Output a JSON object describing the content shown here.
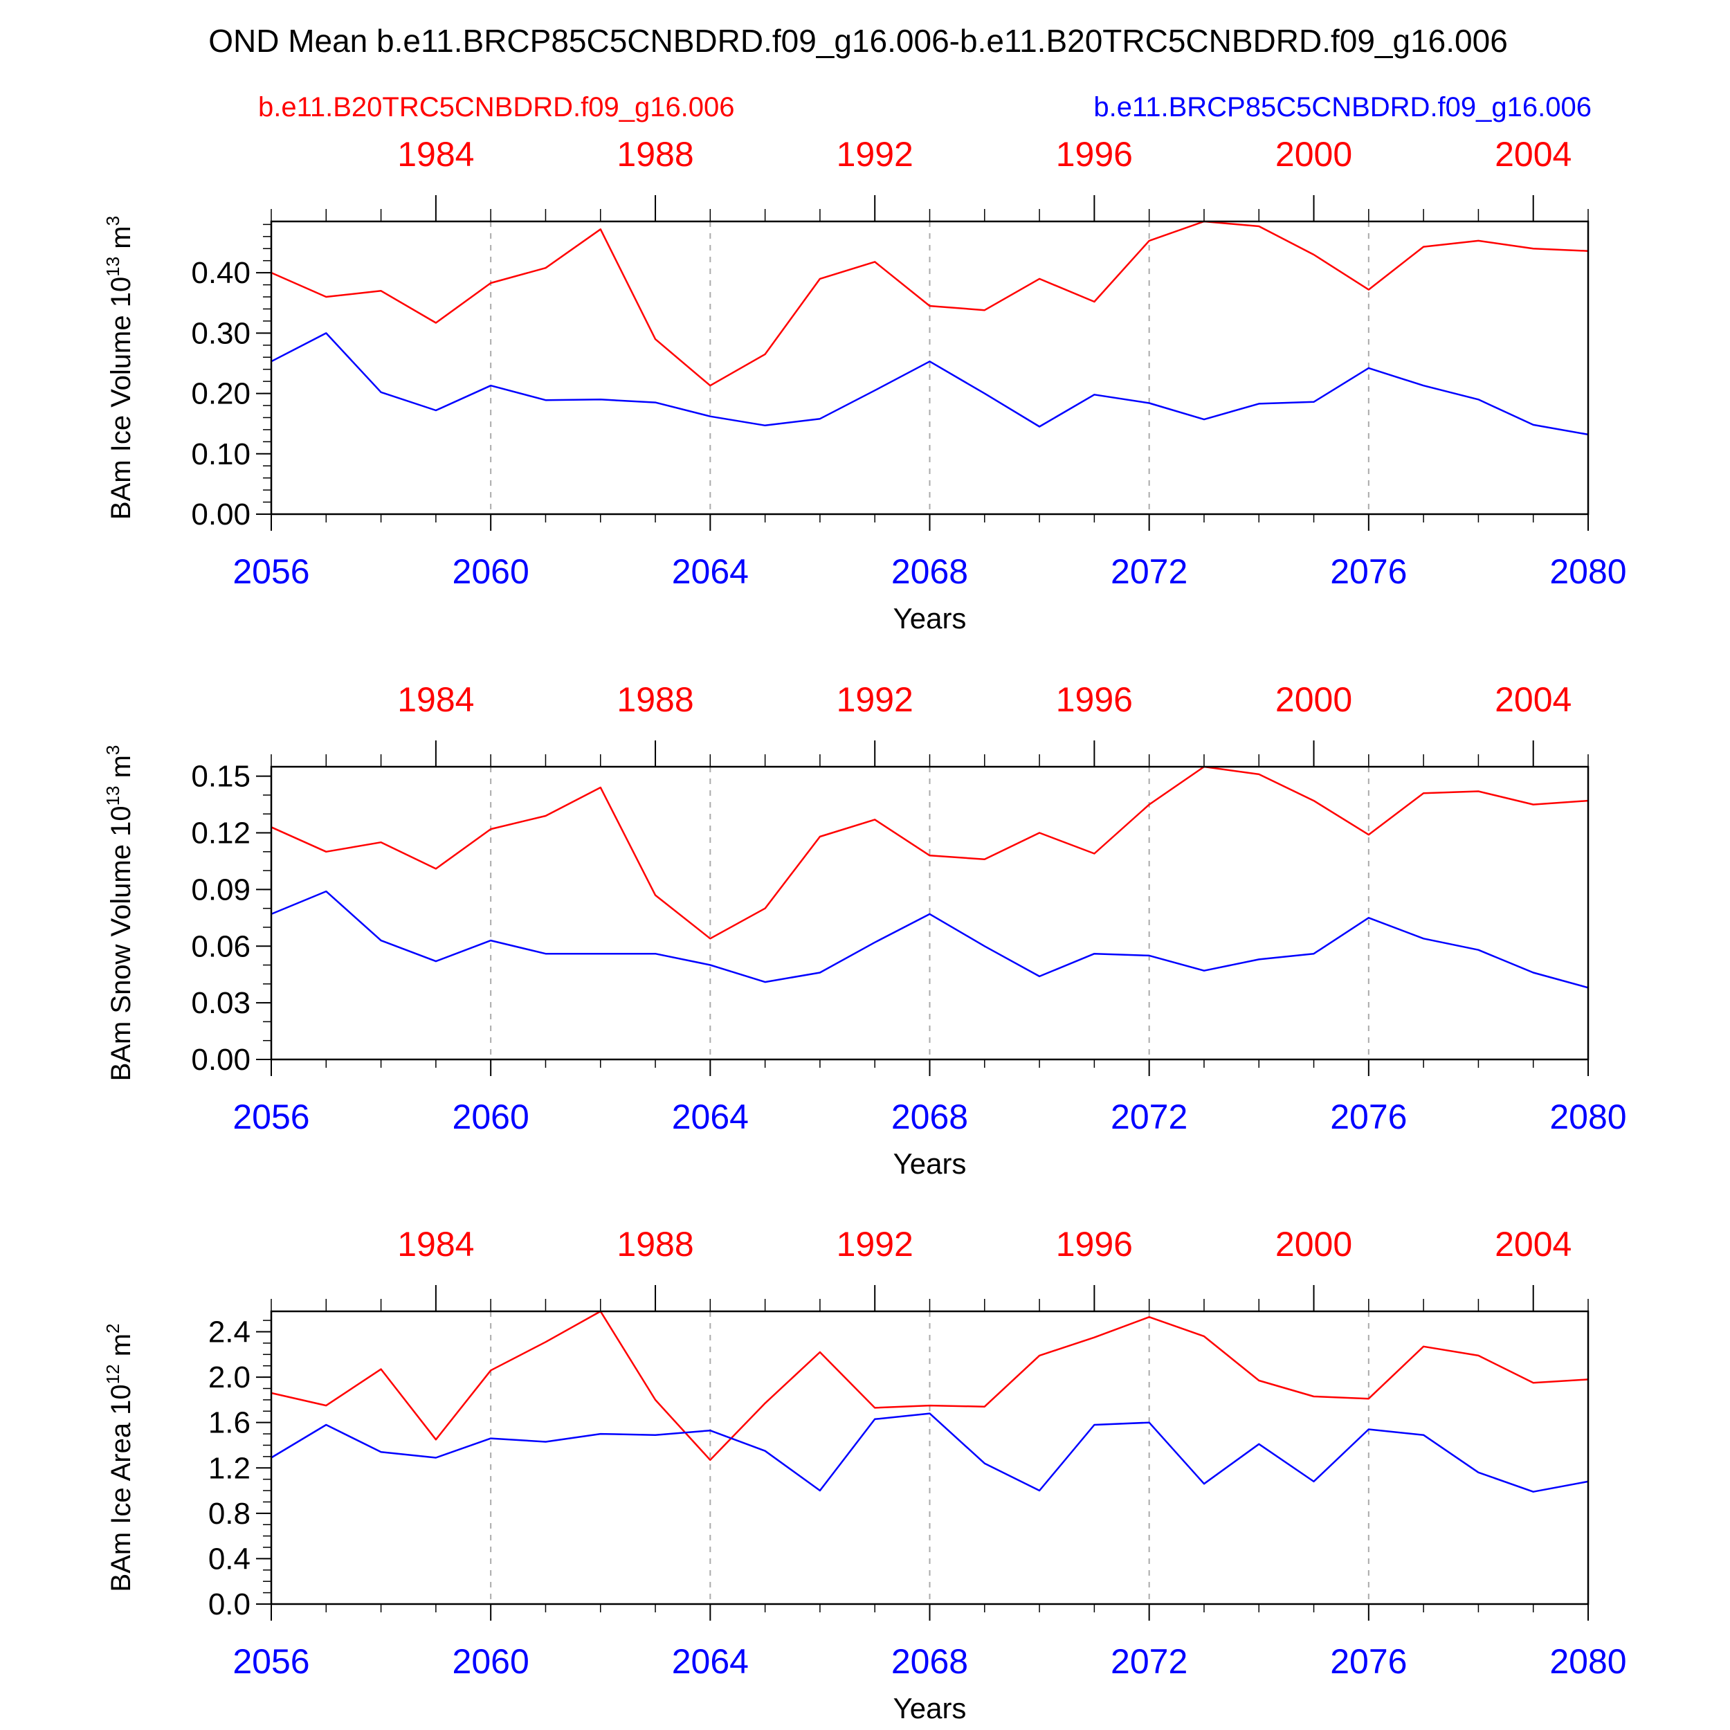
{
  "title": "OND Mean b.e11.BRCP85C5CNBDRD.f09_g16.006-b.e11.B20TRC5CNBDRD.f09_g16.006",
  "legend": {
    "left": "b.e11.B20TRC5CNBDRD.f09_g16.006",
    "right": "b.e11.BRCP85C5CNBDRD.f09_g16.006"
  },
  "colors": {
    "series1": "#ff0000",
    "series2": "#0000ff",
    "axis": "#000000",
    "grid": "#aaaaaa"
  },
  "chart_data": [
    {
      "type": "line",
      "xlabel": "Years",
      "ylabel": "BAm Ice Volume 10",
      "ylabel_exp": "13",
      "ylabel_unit": "m",
      "ylabel_unit_exp": "3",
      "ylim": [
        0,
        0.485
      ],
      "yticks": [
        0.0,
        0.1,
        0.2,
        0.3,
        0.4
      ],
      "ytick_labels": [
        "0.00",
        "0.10",
        "0.20",
        "0.30",
        "0.40"
      ],
      "yminor": 0.02,
      "xlim": [
        2056,
        2080
      ],
      "xticks": [
        2056,
        2060,
        2064,
        2068,
        2072,
        2076,
        2080
      ],
      "xtick_labels": [
        "2056",
        "2060",
        "2064",
        "2068",
        "2072",
        "2076",
        "2080"
      ],
      "top_xlim": [
        1981,
        2005
      ],
      "top_xticks": [
        1984,
        1988,
        1992,
        1996,
        2000,
        2004
      ],
      "top_xtick_labels": [
        "1984",
        "1988",
        "1992",
        "1996",
        "2000",
        "2004"
      ],
      "grid_x": [
        2060,
        2064,
        2068,
        2072,
        2076
      ],
      "series": [
        {
          "name": "b.e11.B20TRC5CNBDRD.f09_g16.006",
          "color": "#ff0000",
          "x": [
            2056,
            2057,
            2058,
            2059,
            2060,
            2061,
            2062,
            2063,
            2064,
            2065,
            2066,
            2067,
            2068,
            2069,
            2070,
            2071,
            2072,
            2073,
            2074,
            2075,
            2076,
            2077,
            2078,
            2079,
            2080
          ],
          "values": [
            0.4,
            0.36,
            0.37,
            0.317,
            0.383,
            0.408,
            0.472,
            0.29,
            0.213,
            0.265,
            0.39,
            0.418,
            0.345,
            0.338,
            0.39,
            0.352,
            0.453,
            0.485,
            0.477,
            0.43,
            0.372,
            0.443,
            0.453,
            0.44,
            0.436
          ]
        },
        {
          "name": "b.e11.BRCP85C5CNBDRD.f09_g16.006",
          "color": "#0000ff",
          "x": [
            2056,
            2057,
            2058,
            2059,
            2060,
            2061,
            2062,
            2063,
            2064,
            2065,
            2066,
            2067,
            2068,
            2069,
            2070,
            2071,
            2072,
            2073,
            2074,
            2075,
            2076,
            2077,
            2078,
            2079,
            2080
          ],
          "values": [
            0.253,
            0.3,
            0.202,
            0.172,
            0.213,
            0.189,
            0.19,
            0.185,
            0.162,
            0.147,
            0.158,
            0.205,
            0.253,
            0.2,
            0.145,
            0.198,
            0.184,
            0.157,
            0.183,
            0.186,
            0.242,
            0.213,
            0.19,
            0.148,
            0.132
          ]
        }
      ]
    },
    {
      "type": "line",
      "xlabel": "Years",
      "ylabel": "BAm Snow Volume 10",
      "ylabel_exp": "13",
      "ylabel_unit": "m",
      "ylabel_unit_exp": "3",
      "ylim": [
        0,
        0.155
      ],
      "yticks": [
        0.0,
        0.03,
        0.06,
        0.09,
        0.12,
        0.15
      ],
      "ytick_labels": [
        "0.00",
        "0.03",
        "0.06",
        "0.09",
        "0.12",
        "0.15"
      ],
      "yminor": 0.01,
      "xlim": [
        2056,
        2080
      ],
      "xticks": [
        2056,
        2060,
        2064,
        2068,
        2072,
        2076,
        2080
      ],
      "xtick_labels": [
        "2056",
        "2060",
        "2064",
        "2068",
        "2072",
        "2076",
        "2080"
      ],
      "top_xlim": [
        1981,
        2005
      ],
      "top_xticks": [
        1984,
        1988,
        1992,
        1996,
        2000,
        2004
      ],
      "top_xtick_labels": [
        "1984",
        "1988",
        "1992",
        "1996",
        "2000",
        "2004"
      ],
      "grid_x": [
        2060,
        2064,
        2068,
        2072,
        2076
      ],
      "series": [
        {
          "name": "b.e11.B20TRC5CNBDRD.f09_g16.006",
          "color": "#ff0000",
          "x": [
            2056,
            2057,
            2058,
            2059,
            2060,
            2061,
            2062,
            2063,
            2064,
            2065,
            2066,
            2067,
            2068,
            2069,
            2070,
            2071,
            2072,
            2073,
            2074,
            2075,
            2076,
            2077,
            2078,
            2079,
            2080
          ],
          "values": [
            0.123,
            0.11,
            0.115,
            0.101,
            0.122,
            0.129,
            0.144,
            0.087,
            0.064,
            0.08,
            0.118,
            0.127,
            0.108,
            0.106,
            0.12,
            0.109,
            0.135,
            0.155,
            0.151,
            0.137,
            0.119,
            0.141,
            0.142,
            0.135,
            0.137
          ]
        },
        {
          "name": "b.e11.BRCP85C5CNBDRD.f09_g16.006",
          "color": "#0000ff",
          "x": [
            2056,
            2057,
            2058,
            2059,
            2060,
            2061,
            2062,
            2063,
            2064,
            2065,
            2066,
            2067,
            2068,
            2069,
            2070,
            2071,
            2072,
            2073,
            2074,
            2075,
            2076,
            2077,
            2078,
            2079,
            2080
          ],
          "values": [
            0.077,
            0.089,
            0.063,
            0.052,
            0.063,
            0.056,
            0.056,
            0.056,
            0.05,
            0.041,
            0.046,
            0.062,
            0.077,
            0.06,
            0.044,
            0.056,
            0.055,
            0.047,
            0.053,
            0.056,
            0.075,
            0.064,
            0.058,
            0.046,
            0.038
          ]
        }
      ]
    },
    {
      "type": "line",
      "xlabel": "Years",
      "ylabel": "BAm Ice Area 10",
      "ylabel_exp": "12",
      "ylabel_unit": "m",
      "ylabel_unit_exp": "2",
      "ylim": [
        0,
        2.58
      ],
      "yticks": [
        0.0,
        0.4,
        0.8,
        1.2,
        1.6,
        2.0,
        2.4
      ],
      "ytick_labels": [
        "0.0",
        "0.4",
        "0.8",
        "1.2",
        "1.6",
        "2.0",
        "2.4"
      ],
      "yminor": 0.1,
      "xlim": [
        2056,
        2080
      ],
      "xticks": [
        2056,
        2060,
        2064,
        2068,
        2072,
        2076,
        2080
      ],
      "xtick_labels": [
        "2056",
        "2060",
        "2064",
        "2068",
        "2072",
        "2076",
        "2080"
      ],
      "top_xlim": [
        1981,
        2005
      ],
      "top_xticks": [
        1984,
        1988,
        1992,
        1996,
        2000,
        2004
      ],
      "top_xtick_labels": [
        "1984",
        "1988",
        "1992",
        "1996",
        "2000",
        "2004"
      ],
      "grid_x": [
        2060,
        2064,
        2068,
        2072,
        2076
      ],
      "series": [
        {
          "name": "b.e11.B20TRC5CNBDRD.f09_g16.006",
          "color": "#ff0000",
          "x": [
            2056,
            2057,
            2058,
            2059,
            2060,
            2061,
            2062,
            2063,
            2064,
            2065,
            2066,
            2067,
            2068,
            2069,
            2070,
            2071,
            2072,
            2073,
            2074,
            2075,
            2076,
            2077,
            2078,
            2079,
            2080
          ],
          "values": [
            1.86,
            1.75,
            2.07,
            1.45,
            2.06,
            2.31,
            2.58,
            1.8,
            1.27,
            1.77,
            2.22,
            1.73,
            1.75,
            1.74,
            2.19,
            2.35,
            2.53,
            2.36,
            1.97,
            1.83,
            1.81,
            2.27,
            2.19,
            1.95,
            1.98
          ]
        },
        {
          "name": "b.e11.BRCP85C5CNBDRD.f09_g16.006",
          "color": "#0000ff",
          "x": [
            2056,
            2057,
            2058,
            2059,
            2060,
            2061,
            2062,
            2063,
            2064,
            2065,
            2066,
            2067,
            2068,
            2069,
            2070,
            2071,
            2072,
            2073,
            2074,
            2075,
            2076,
            2077,
            2078,
            2079,
            2080
          ],
          "values": [
            1.29,
            1.58,
            1.34,
            1.29,
            1.46,
            1.43,
            1.5,
            1.49,
            1.53,
            1.35,
            1.0,
            1.63,
            1.68,
            1.24,
            1.0,
            1.58,
            1.6,
            1.06,
            1.41,
            1.08,
            1.54,
            1.49,
            1.16,
            0.99,
            1.08
          ]
        }
      ]
    }
  ]
}
